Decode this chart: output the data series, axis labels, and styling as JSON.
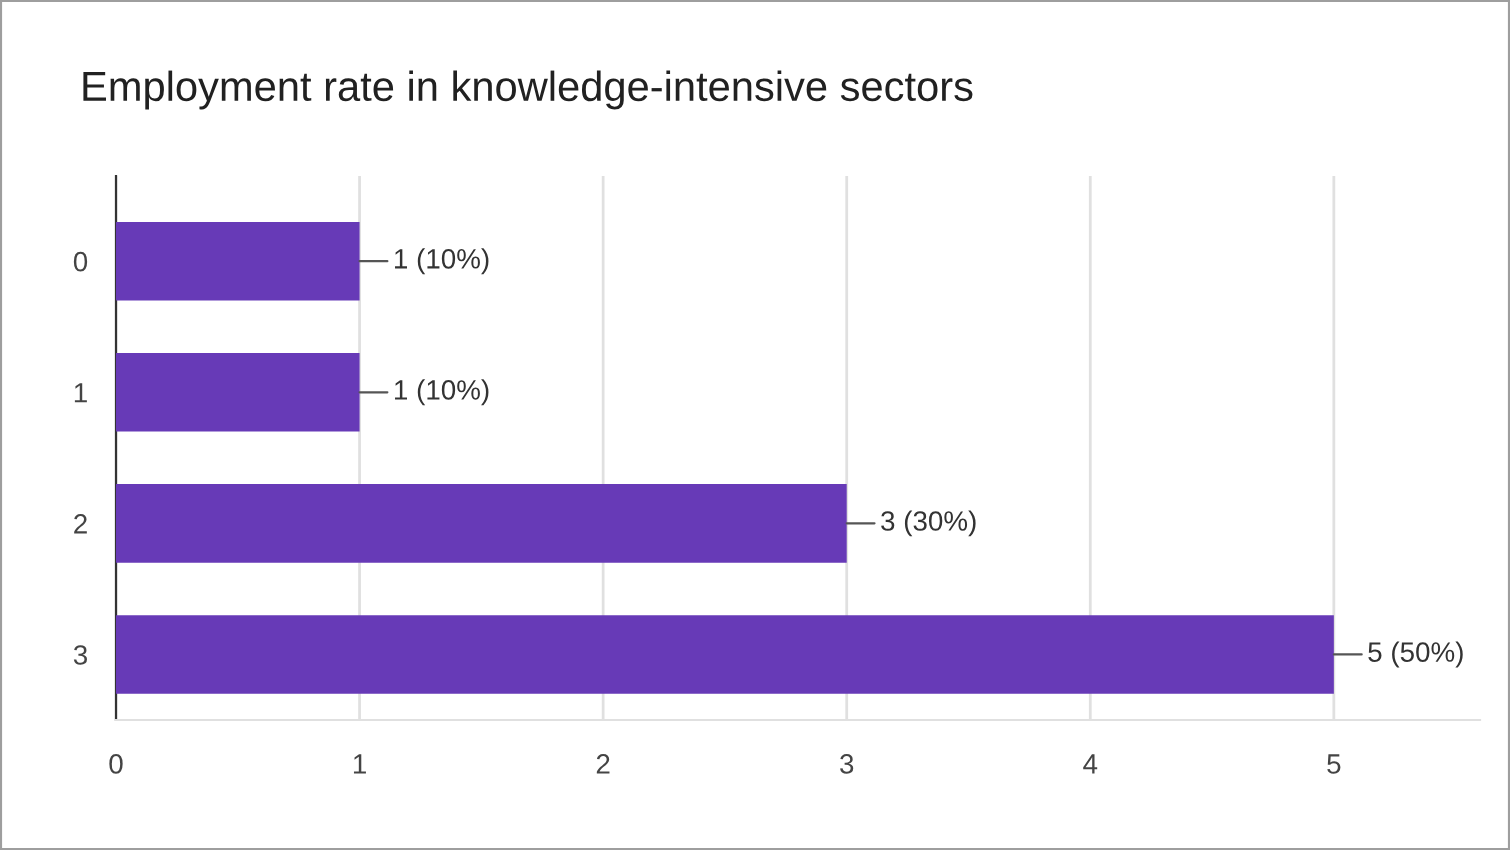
{
  "chart_data": {
    "type": "bar",
    "orientation": "horizontal",
    "title": "Employment rate in knowledge-intensive sectors",
    "categories": [
      "0",
      "1",
      "2",
      "3"
    ],
    "values": [
      1,
      1,
      3,
      5
    ],
    "value_labels": [
      "1 (10%)",
      "1 (10%)",
      "3 (30%)",
      "5 (50%)"
    ],
    "color": "#673ab7",
    "xlim": [
      0,
      5.6
    ],
    "xticks": [
      0,
      1,
      2,
      3,
      4,
      5
    ],
    "grid": "x"
  }
}
